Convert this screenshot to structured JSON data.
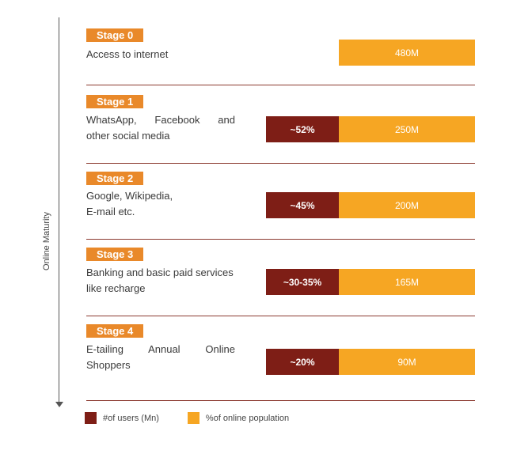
{
  "chart_data": {
    "type": "bar",
    "orientation": "horizontal",
    "axis_label": "Online Maturity",
    "categories": [
      {
        "stage": "Stage 0",
        "description_lines": [
          "Access to internet"
        ],
        "users_label": "",
        "population_label": "480M"
      },
      {
        "stage": "Stage 1",
        "description_lines": [
          "WhatsApp, Facebook and",
          "other social media"
        ],
        "users_label": "~52%",
        "population_label": "250M"
      },
      {
        "stage": "Stage 2",
        "description_lines": [
          "Google, Wikipedia,",
          "E-mail etc."
        ],
        "users_label": "~45%",
        "population_label": "200M"
      },
      {
        "stage": "Stage 3",
        "description_lines": [
          "Banking and basic paid services",
          "like recharge"
        ],
        "users_label": "~30-35%",
        "population_label": "165M"
      },
      {
        "stage": "Stage 4",
        "description_lines": [
          "E-tailing Annual Online",
          "Shoppers"
        ],
        "users_label": "~20%",
        "population_label": "90M"
      }
    ],
    "series": [
      {
        "name": "#of users (Mn)",
        "color": "#7e1e16",
        "values": [
          null,
          52,
          45,
          32.5,
          20
        ]
      },
      {
        "name": "%of online population",
        "color": "#f6a623",
        "values": [
          480,
          250,
          200,
          165,
          90
        ]
      }
    ],
    "legend": "bottom-left"
  }
}
